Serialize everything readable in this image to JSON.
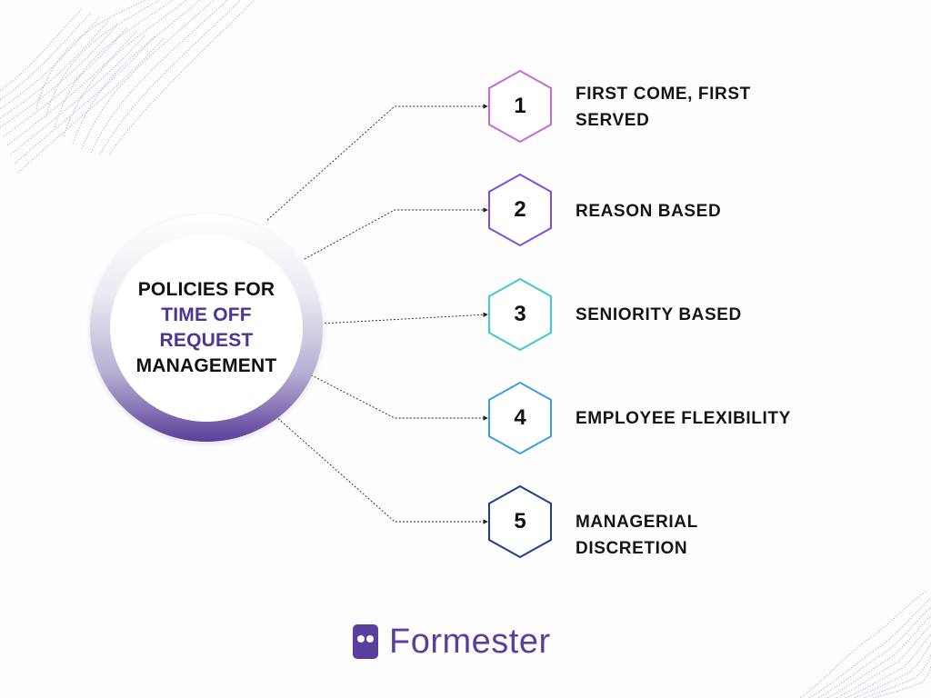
{
  "center": {
    "line1": "POLICIES FOR",
    "line2": "TIME OFF",
    "line3": "REQUEST",
    "line4": "MANAGEMENT"
  },
  "colors": {
    "accent": "#4b3596",
    "brand": "#5b3f9e",
    "hex1": "#c56bd6",
    "hex2": "#7f4fe0",
    "hex3": "#3ec9d6",
    "hex4": "#3a9fe6",
    "hex5": "#1e3f8f"
  },
  "items": [
    {
      "number": "1",
      "label_line1": "FIRST COME, FIRST",
      "label_line2": "SERVED"
    },
    {
      "number": "2",
      "label_line1": "REASON BASED",
      "label_line2": ""
    },
    {
      "number": "3",
      "label_line1": "SENIORITY BASED",
      "label_line2": ""
    },
    {
      "number": "4",
      "label_line1": "EMPLOYEE FLEXIBILITY",
      "label_line2": ""
    },
    {
      "number": "5",
      "label_line1": "MANAGERIAL DISCRETION",
      "label_line2": ""
    }
  ],
  "brand": {
    "icon": "formester-logo-icon",
    "name": "Formester"
  }
}
